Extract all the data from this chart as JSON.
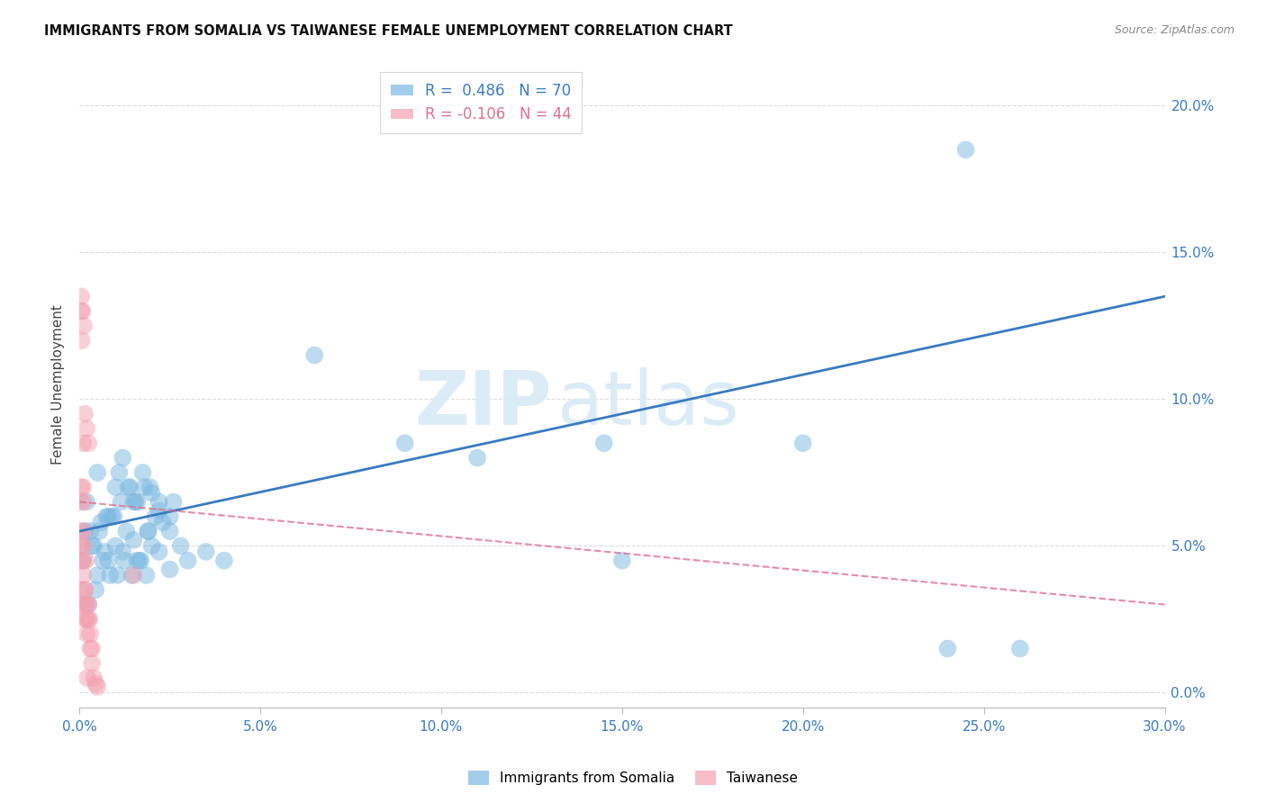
{
  "title": "IMMIGRANTS FROM SOMALIA VS TAIWANESE FEMALE UNEMPLOYMENT CORRELATION CHART",
  "source": "Source: ZipAtlas.com",
  "ylabel": "Female Unemployment",
  "xlabel_vals": [
    0.0,
    5.0,
    10.0,
    15.0,
    20.0,
    25.0,
    30.0
  ],
  "ylabel_vals": [
    0.0,
    5.0,
    10.0,
    15.0,
    20.0
  ],
  "xlim": [
    0.0,
    30.0
  ],
  "ylim": [
    -0.5,
    21.5
  ],
  "blue_color": "#7ab8e0",
  "pink_color": "#f4a0b0",
  "trend_blue": "#3a7bbf",
  "trend_pink": "#e07090",
  "watermark_color": "#d8eaf7",
  "blue_line_start_y": 5.5,
  "blue_line_end_y": 13.5,
  "pink_line_start_y": 6.5,
  "pink_line_end_y": 3.0,
  "blue_scatter_x": [
    0.2,
    0.5,
    0.8,
    1.0,
    1.2,
    1.5,
    1.8,
    2.0,
    2.2,
    2.5,
    0.3,
    0.6,
    0.9,
    1.1,
    1.4,
    1.6,
    1.9,
    2.1,
    2.3,
    2.6,
    0.4,
    0.7,
    1.0,
    1.3,
    1.5,
    1.7,
    2.0,
    2.2,
    2.5,
    2.8,
    0.1,
    0.5,
    0.8,
    1.2,
    1.6,
    1.9,
    2.2,
    2.5,
    3.0,
    3.5,
    0.15,
    0.35,
    0.55,
    0.75,
    0.95,
    1.15,
    1.35,
    1.55,
    1.75,
    1.95,
    0.25,
    0.45,
    0.65,
    0.85,
    1.05,
    1.25,
    1.45,
    1.65,
    1.85,
    4.0,
    6.5,
    9.0,
    11.0,
    15.0,
    24.0,
    26.0,
    24.5,
    20.0,
    14.5
  ],
  "blue_scatter_y": [
    6.5,
    7.5,
    6.0,
    7.0,
    8.0,
    6.5,
    7.0,
    6.8,
    6.2,
    6.0,
    5.5,
    5.8,
    6.0,
    7.5,
    7.0,
    6.5,
    5.5,
    6.0,
    5.8,
    6.5,
    5.0,
    4.8,
    5.0,
    5.5,
    5.2,
    4.5,
    5.0,
    4.8,
    5.5,
    5.0,
    4.5,
    4.0,
    4.5,
    4.8,
    4.5,
    5.5,
    6.5,
    4.2,
    4.5,
    4.8,
    5.5,
    5.0,
    5.5,
    6.0,
    6.0,
    6.5,
    7.0,
    6.5,
    7.5,
    7.0,
    3.0,
    3.5,
    4.5,
    4.0,
    4.0,
    4.5,
    4.0,
    4.5,
    4.0,
    4.5,
    11.5,
    8.5,
    8.0,
    4.5,
    1.5,
    1.5,
    18.5,
    8.5,
    8.5
  ],
  "pink_scatter_x": [
    0.05,
    0.05,
    0.05,
    0.05,
    0.05,
    0.05,
    0.05,
    0.05,
    0.05,
    0.05,
    0.1,
    0.1,
    0.1,
    0.1,
    0.1,
    0.1,
    0.1,
    0.15,
    0.15,
    0.15,
    0.15,
    0.15,
    0.2,
    0.2,
    0.2,
    0.2,
    0.25,
    0.25,
    0.25,
    0.3,
    0.3,
    0.35,
    0.35,
    0.4,
    1.5,
    0.5,
    0.45,
    0.22,
    0.28,
    0.18,
    0.12,
    0.08,
    0.06
  ],
  "pink_scatter_y": [
    13.0,
    13.5,
    7.0,
    6.5,
    5.0,
    5.5,
    4.5,
    5.0,
    3.5,
    3.0,
    4.5,
    4.0,
    5.5,
    5.0,
    6.5,
    7.0,
    8.5,
    3.5,
    3.0,
    2.5,
    3.5,
    9.5,
    3.0,
    2.5,
    2.0,
    9.0,
    3.0,
    2.5,
    8.5,
    2.0,
    1.5,
    1.0,
    1.5,
    0.5,
    4.0,
    0.2,
    0.3,
    0.5,
    2.5,
    4.5,
    12.5,
    13.0,
    12.0
  ]
}
